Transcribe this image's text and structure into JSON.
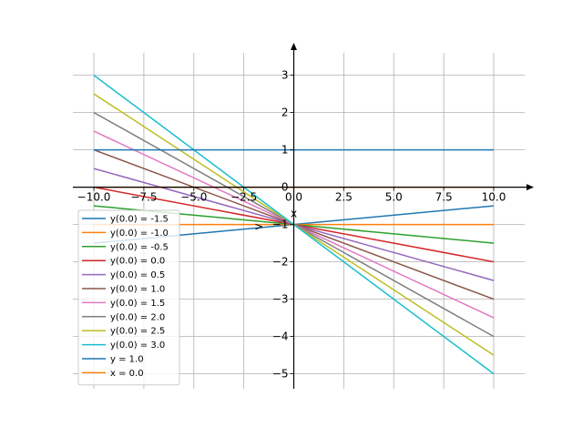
{
  "chart_data": {
    "type": "line",
    "xlim": [
      -11.05,
      11.55
    ],
    "ylim": [
      -5.4,
      3.6
    ],
    "xticks": [
      -10.0,
      -7.5,
      -5.0,
      -2.5,
      0.0,
      2.5,
      5.0,
      7.5,
      10.0
    ],
    "xtick_labels": [
      "−10.0",
      "−7.5",
      "−5.0",
      "−2.5",
      "0.0",
      "2.5",
      "5.0",
      "7.5",
      "10.0"
    ],
    "yticks": [
      -5,
      -4,
      -3,
      -2,
      -1,
      0,
      1,
      2,
      3
    ],
    "ytick_labels": [
      "−5",
      "−4",
      "−3",
      "−2",
      "−1",
      "0",
      "1",
      "2",
      "3"
    ],
    "x_axis_label": "x",
    "arrow_label": ">",
    "grid": true,
    "legend_placement": "lower-left",
    "series": [
      {
        "name": "y(0.0) = -1.5",
        "color": "#1f77b4",
        "x": [
          -10,
          10
        ],
        "y": [
          -1.5,
          -0.5
        ]
      },
      {
        "name": "y(0.0) = -1.0",
        "color": "#ff7f0e",
        "x": [
          -10,
          10
        ],
        "y": [
          -1.0,
          -1.0
        ]
      },
      {
        "name": "y(0.0) = -0.5",
        "color": "#2ca02c",
        "x": [
          -10,
          10
        ],
        "y": [
          -0.5,
          -1.5
        ]
      },
      {
        "name": "y(0.0) = 0.0",
        "color": "#d62728",
        "x": [
          -10,
          10
        ],
        "y": [
          0.0,
          -2.0
        ]
      },
      {
        "name": "y(0.0) = 0.5",
        "color": "#9467bd",
        "x": [
          -10,
          10
        ],
        "y": [
          0.5,
          -2.5
        ]
      },
      {
        "name": "y(0.0) = 1.0",
        "color": "#8c564b",
        "x": [
          -10,
          10
        ],
        "y": [
          1.0,
          -3.0
        ]
      },
      {
        "name": "y(0.0) = 1.5",
        "color": "#e377c2",
        "x": [
          -10,
          10
        ],
        "y": [
          1.5,
          -3.5
        ]
      },
      {
        "name": "y(0.0) = 2.0",
        "color": "#7f7f7f",
        "x": [
          -10,
          10
        ],
        "y": [
          2.0,
          -4.0
        ]
      },
      {
        "name": "y(0.0) = 2.5",
        "color": "#bcbd22",
        "x": [
          -10,
          10
        ],
        "y": [
          2.5,
          -4.5
        ]
      },
      {
        "name": "y(0.0) = 3.0",
        "color": "#17becf",
        "x": [
          -10,
          10
        ],
        "y": [
          3.0,
          -5.0
        ]
      },
      {
        "name": "y = 1.0",
        "color": "#1f77b4",
        "x": [
          -10,
          10
        ],
        "y": [
          1.0,
          1.0
        ]
      },
      {
        "name": "x = 0.0",
        "color": "#ff7f0e",
        "x": [
          -10,
          10
        ],
        "y": [
          0.0,
          0.0
        ]
      }
    ]
  }
}
